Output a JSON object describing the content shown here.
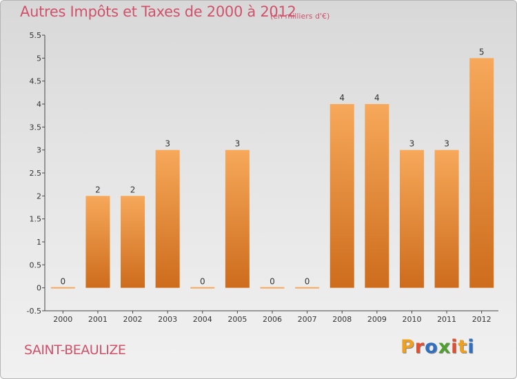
{
  "header": {
    "title": "Autres Impôts et Taxes de 2000 à 2012",
    "subtitle": "(en milliers d'€)"
  },
  "footer": {
    "commune": "SAINT-BEAULIZE",
    "logo_letters": [
      "P",
      "r",
      "o",
      "x",
      "i",
      "t",
      "i"
    ],
    "logo_colors": [
      "#f0a020",
      "#e05030",
      "#3070c0",
      "#50a030",
      "#e05030",
      "#f0a020",
      "#3070c0"
    ]
  },
  "colors": {
    "bar_top": "#f7a85a",
    "bar_bottom": "#cd6c1c",
    "text_accent": "#d0526a"
  },
  "chart_data": {
    "type": "bar",
    "categories": [
      "2000",
      "2001",
      "2002",
      "2003",
      "2004",
      "2005",
      "2006",
      "2007",
      "2008",
      "2009",
      "2010",
      "2011",
      "2012"
    ],
    "values": [
      0,
      2,
      2,
      3,
      0,
      3,
      0,
      0,
      4,
      4,
      3,
      3,
      5
    ],
    "data_labels": [
      "0",
      "2",
      "2",
      "3",
      "0",
      "3",
      "0",
      "0",
      "4",
      "4",
      "3",
      "3",
      "5"
    ],
    "ylim": [
      -0.5,
      5.5
    ],
    "yticks": [
      -0.5,
      0,
      0.5,
      1,
      1.5,
      2,
      2.5,
      3,
      3.5,
      4,
      4.5,
      5,
      5.5
    ],
    "ytick_labels": [
      "-0.5",
      "0",
      "0.5",
      "1",
      "1.5",
      "2",
      "2.5",
      "3",
      "3.5",
      "4",
      "4.5",
      "5",
      "5.5"
    ],
    "grid": false
  }
}
